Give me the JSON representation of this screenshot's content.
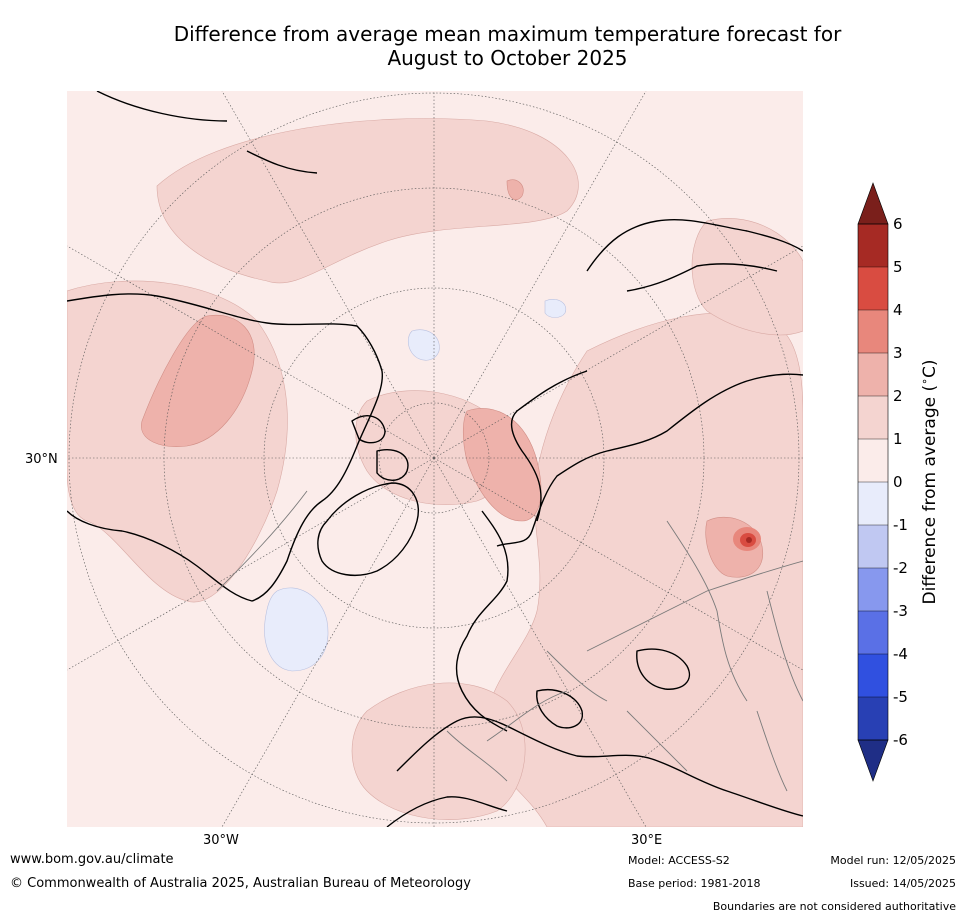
{
  "title_line1": "Difference from average mean maximum temperature forecast for",
  "title_line2": "August to October 2025",
  "map": {
    "lat_label": "30°N",
    "lon_label_left": "30°W",
    "lon_label_right": "30°E"
  },
  "colorbar": {
    "label": "Difference from average (°C)",
    "label_main": "Difference from average (",
    "label_unit": "C)",
    "ticks": [
      "6",
      "5",
      "4",
      "3",
      "2",
      "1",
      "0",
      "-1",
      "-2",
      "-3",
      "-4",
      "-5",
      "-6"
    ],
    "colors": [
      "#a62a24",
      "#d94c41",
      "#e8877c",
      "#eeb2ab",
      "#f4d4d0",
      "#fbecea",
      "#e8ecfb",
      "#c0c8f2",
      "#8798ee",
      "#5a70e6",
      "#3050e0",
      "#2840b4"
    ],
    "over_color": "#7a1f1b",
    "under_color": "#1f2e86"
  },
  "footer": {
    "website": "www.bom.gov.au/climate",
    "copyright": "© Commonwealth of Australia 2025, Australian Bureau of Meteorology",
    "model": "Model: ACCESS-S2",
    "base_period": "Base period: 1981-2018",
    "model_run": "Model run: 12/05/2025",
    "issued": "Issued: 14/05/2025",
    "disclaimer": "Boundaries are not considered authoritative"
  }
}
